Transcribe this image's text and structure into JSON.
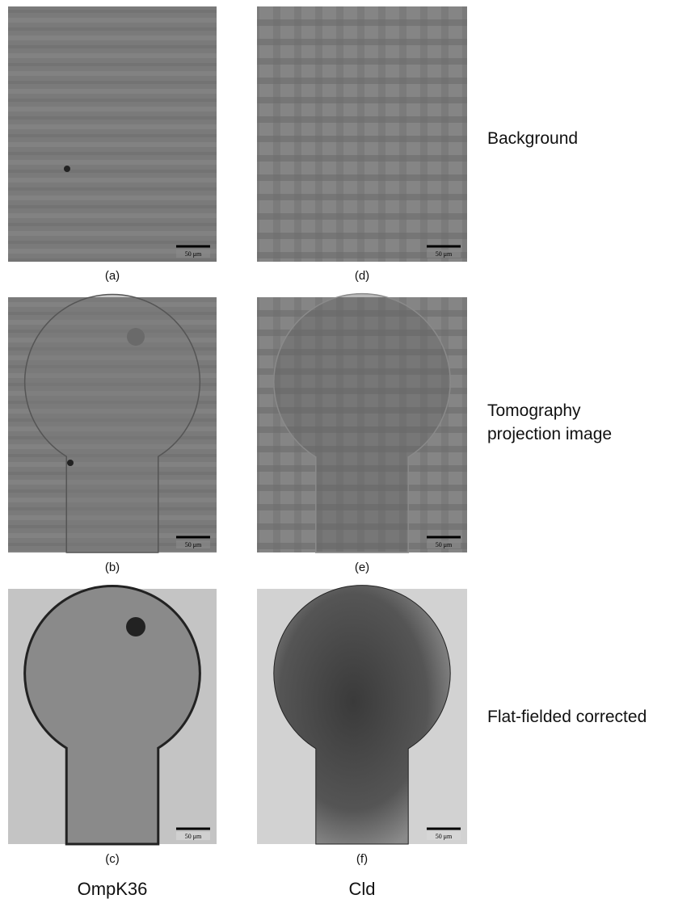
{
  "panels": [
    {
      "label": "(a)",
      "scale_bar": "50 μm"
    },
    {
      "label": "(b)",
      "scale_bar": "50 μm"
    },
    {
      "label": "(c)",
      "scale_bar": "50 μm"
    },
    {
      "label": "(d)",
      "scale_bar": "50 μm"
    },
    {
      "label": "(e)",
      "scale_bar": "50 μm"
    },
    {
      "label": "(f)",
      "scale_bar": "50 μm"
    }
  ],
  "row_labels": [
    {
      "lines": [
        "Background"
      ]
    },
    {
      "lines": [
        "Tomography",
        "projection image"
      ]
    },
    {
      "lines": [
        "Flat-fielded corrected"
      ]
    }
  ],
  "column_labels": [
    "OmpK36",
    "Cld"
  ]
}
